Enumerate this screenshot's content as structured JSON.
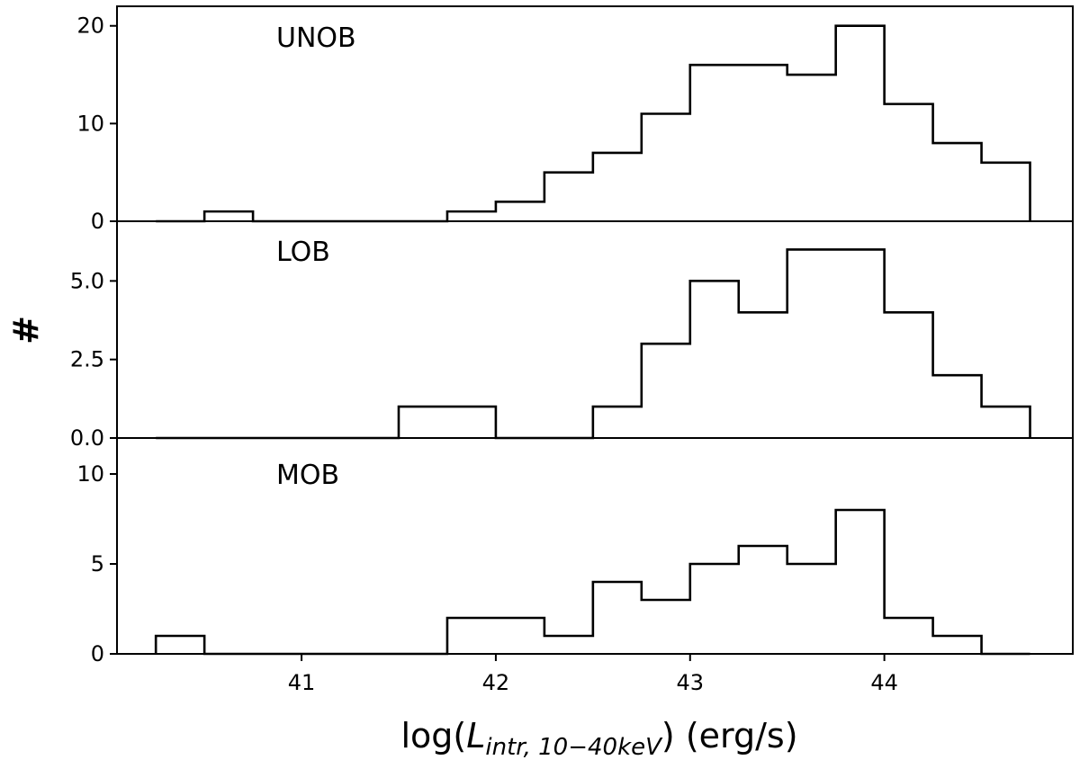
{
  "chart_data": {
    "type": "histogram",
    "xlabel": {
      "prefix": "log(",
      "symbol": "L",
      "subscript": "intr, 10−40keV",
      "suffix": ") (erg/s)"
    },
    "ylabel": "#",
    "xlim": [
      40.05,
      44.97
    ],
    "xticks": [
      "41",
      "42",
      "43",
      "44"
    ],
    "bin_edges": [
      40.25,
      40.5,
      40.75,
      41.0,
      41.25,
      41.5,
      41.75,
      42.0,
      42.25,
      42.5,
      42.75,
      43.0,
      43.25,
      43.5,
      43.75,
      44.0,
      44.25,
      44.5,
      44.75
    ],
    "panels": [
      {
        "name": "UNOB",
        "label": "UNOB",
        "values": [
          0,
          1,
          0,
          0,
          0,
          0,
          1,
          2,
          5,
          7,
          11,
          16,
          16,
          15,
          20,
          12,
          8,
          6
        ],
        "ylim": [
          0,
          22.0
        ],
        "yticks": [
          "0",
          "10",
          "20"
        ],
        "ytick_values": [
          0,
          10,
          20
        ]
      },
      {
        "name": "LOB",
        "label": "LOB",
        "values": [
          0,
          0,
          0,
          0,
          0,
          1,
          1,
          0,
          0,
          1,
          3,
          5,
          4,
          6,
          6,
          4,
          2,
          1
        ],
        "ylim": [
          0,
          6.9
        ],
        "yticks": [
          "0.0",
          "2.5",
          "5.0"
        ],
        "ytick_values": [
          0,
          2.5,
          5.0
        ]
      },
      {
        "name": "MOB",
        "label": "MOB",
        "values": [
          1,
          0,
          0,
          0,
          0,
          0,
          2,
          2,
          1,
          4,
          3,
          5,
          6,
          5,
          8,
          2,
          1,
          0
        ],
        "ylim": [
          0,
          12.0
        ],
        "yticks": [
          "0",
          "5",
          "10"
        ],
        "ytick_values": [
          0,
          5,
          10
        ]
      }
    ]
  }
}
